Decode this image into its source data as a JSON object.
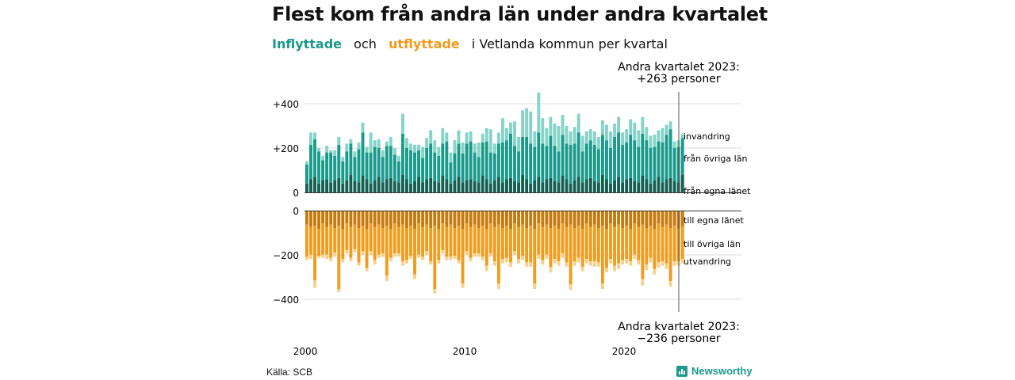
{
  "title": "Flest kom från andra län under andra kvartalet",
  "subtitle": {
    "in_word": "Inflyttade",
    "and_word": "och",
    "out_word": "utflyttade",
    "rest": "i Vetlanda  kommun  per  kvartal"
  },
  "source": "Källa: SCB",
  "brand": "Newsworthy",
  "colors": {
    "in_same": "#155f52",
    "in_other": "#1a9a8a",
    "in_immig": "#86d3c8",
    "out_same": "#c77a0e",
    "out_other": "#f29b1d",
    "out_emig": "#f8d08c"
  },
  "annotations": {
    "top_line1": "Andra kvartalet 2023:",
    "top_line2": "+263 personer",
    "bottom_line1": "Andra kvartalet 2023:",
    "bottom_line2": "−236 personer"
  },
  "chart_data": {
    "type": "bar",
    "stacked": true,
    "y_ticks": [
      "+400",
      "+200",
      "0",
      "0",
      "−200",
      "−400"
    ],
    "x_ticks": [
      "2000",
      "2010",
      "2020"
    ],
    "grid": true,
    "legend_placement": "right",
    "positive": {
      "ylim": [
        0,
        400
      ],
      "series": [
        {
          "name": "från egna länet",
          "values": [
            40,
            60,
            70,
            40,
            55,
            60,
            45,
            55,
            65,
            40,
            55,
            80,
            50,
            45,
            75,
            60,
            40,
            55,
            70,
            45,
            60,
            65,
            50,
            45,
            80,
            60,
            40,
            50,
            70,
            45,
            60,
            65,
            50,
            45,
            75,
            60,
            40,
            55,
            70,
            45,
            55,
            60,
            50,
            45,
            75,
            60,
            40,
            55,
            70,
            45,
            60,
            65,
            50,
            45,
            80,
            60,
            40,
            55,
            70,
            45,
            60,
            65,
            50,
            45,
            75,
            60,
            40,
            55,
            70,
            45,
            60,
            65,
            50,
            45,
            80,
            60,
            40,
            55,
            70,
            45,
            60,
            65,
            50,
            45,
            75,
            60,
            40,
            55,
            70,
            45,
            60,
            65,
            50,
            45,
            80
          ]
        },
        {
          "name": "från övriga län",
          "values": [
            85,
            155,
            170,
            145,
            90,
            120,
            135,
            110,
            150,
            100,
            130,
            140,
            110,
            150,
            195,
            120,
            140,
            150,
            130,
            115,
            150,
            145,
            120,
            95,
            185,
            140,
            150,
            130,
            120,
            110,
            140,
            155,
            130,
            120,
            145,
            170,
            95,
            120,
            150,
            130,
            165,
            170,
            130,
            115,
            150,
            170,
            140,
            120,
            150,
            180,
            175,
            200,
            160,
            140,
            170,
            190,
            180,
            150,
            200,
            175,
            150,
            190,
            160,
            140,
            185,
            160,
            175,
            165,
            200,
            140,
            160,
            170,
            165,
            150,
            180,
            175,
            160,
            195,
            200,
            170,
            165,
            195,
            185,
            160,
            190,
            175,
            160,
            150,
            160,
            180,
            200,
            220,
            150,
            160,
            165
          ]
        },
        {
          "name": "invandring",
          "values": [
            15,
            55,
            30,
            15,
            20,
            30,
            10,
            25,
            35,
            20,
            35,
            20,
            25,
            30,
            45,
            25,
            90,
            30,
            40,
            30,
            20,
            40,
            30,
            25,
            90,
            45,
            30,
            35,
            25,
            50,
            45,
            60,
            55,
            40,
            70,
            40,
            45,
            60,
            60,
            50,
            50,
            45,
            40,
            65,
            40,
            60,
            105,
            45,
            50,
            110,
            55,
            50,
            110,
            65,
            120,
            130,
            145,
            70,
            180,
            115,
            80,
            85,
            100,
            115,
            90,
            80,
            60,
            75,
            85,
            70,
            55,
            50,
            60,
            55,
            65,
            70,
            75,
            60,
            70,
            55,
            60,
            70,
            80,
            75,
            75,
            60,
            55,
            55,
            50,
            65,
            45,
            35,
            30,
            30,
            18
          ]
        }
      ]
    },
    "negative": {
      "ylim": [
        -400,
        0
      ],
      "series": [
        {
          "name": "till egna länet",
          "values": [
            -60,
            -70,
            -65,
            -80,
            -55,
            -70,
            -60,
            -75,
            -65,
            -80,
            -55,
            -70,
            -60,
            -75,
            -65,
            -80,
            -55,
            -70,
            -60,
            -75,
            -65,
            -80,
            -55,
            -70,
            -60,
            -75,
            -65,
            -80,
            -55,
            -70,
            -60,
            -75,
            -65,
            -80,
            -55,
            -70,
            -60,
            -75,
            -65,
            -80,
            -55,
            -70,
            -60,
            -75,
            -65,
            -80,
            -55,
            -70,
            -60,
            -75,
            -65,
            -80,
            -55,
            -70,
            -60,
            -75,
            -65,
            -80,
            -55,
            -70,
            -60,
            -75,
            -65,
            -80,
            -55,
            -70,
            -60,
            -75,
            -65,
            -80,
            -55,
            -70,
            -60,
            -75,
            -65,
            -80,
            -55,
            -70,
            -60,
            -75,
            -65,
            -80,
            -55,
            -70,
            -60,
            -75,
            -65,
            -80,
            -55,
            -70,
            -60,
            -75,
            -65,
            -80,
            -70
          ]
        },
        {
          "name": "till övriga län",
          "values": [
            -145,
            -125,
            -245,
            -120,
            -140,
            -125,
            -150,
            -110,
            -285,
            -135,
            -120,
            -140,
            -110,
            -155,
            -115,
            -175,
            -125,
            -150,
            -135,
            -115,
            -225,
            -130,
            -135,
            -120,
            -165,
            -145,
            -135,
            -205,
            -140,
            -135,
            -120,
            -150,
            -285,
            -140,
            -120,
            -135,
            -145,
            -125,
            -155,
            -245,
            -125,
            -140,
            -130,
            -115,
            -140,
            -165,
            -135,
            -155,
            -265,
            -140,
            -145,
            -150,
            -125,
            -145,
            -140,
            -155,
            -165,
            -245,
            -140,
            -150,
            -135,
            -175,
            -150,
            -145,
            -135,
            -160,
            -270,
            -150,
            -145,
            -170,
            -160,
            -155,
            -165,
            -155,
            -260,
            -175,
            -160,
            -175,
            -175,
            -145,
            -150,
            -145,
            -140,
            -150,
            -245,
            -165,
            -145,
            -180,
            -175,
            -155,
            -175,
            -240,
            -160,
            -145,
            -145
          ]
        },
        {
          "name": "utvandring",
          "values": [
            -15,
            -20,
            -35,
            -10,
            -15,
            -20,
            -15,
            -20,
            -15,
            -15,
            -15,
            -15,
            -15,
            -15,
            -15,
            -15,
            -15,
            -20,
            -15,
            -15,
            -25,
            -15,
            -15,
            -15,
            -20,
            -15,
            -15,
            -20,
            -15,
            -15,
            -15,
            -15,
            -20,
            -15,
            -15,
            -15,
            -15,
            -15,
            -15,
            -20,
            -15,
            -15,
            -15,
            -15,
            -15,
            -25,
            -15,
            -20,
            -25,
            -20,
            -20,
            -20,
            -15,
            -20,
            -20,
            -20,
            -20,
            -25,
            -20,
            -20,
            -20,
            -25,
            -20,
            -20,
            -20,
            -20,
            -25,
            -20,
            -20,
            -20,
            -20,
            -20,
            -25,
            -20,
            -25,
            -20,
            -20,
            -25,
            -25,
            -20,
            -20,
            -20,
            -20,
            -20,
            -30,
            -25,
            -20,
            -25,
            -25,
            -20,
            -25,
            -25,
            -20,
            -20,
            -20
          ]
        }
      ]
    }
  }
}
